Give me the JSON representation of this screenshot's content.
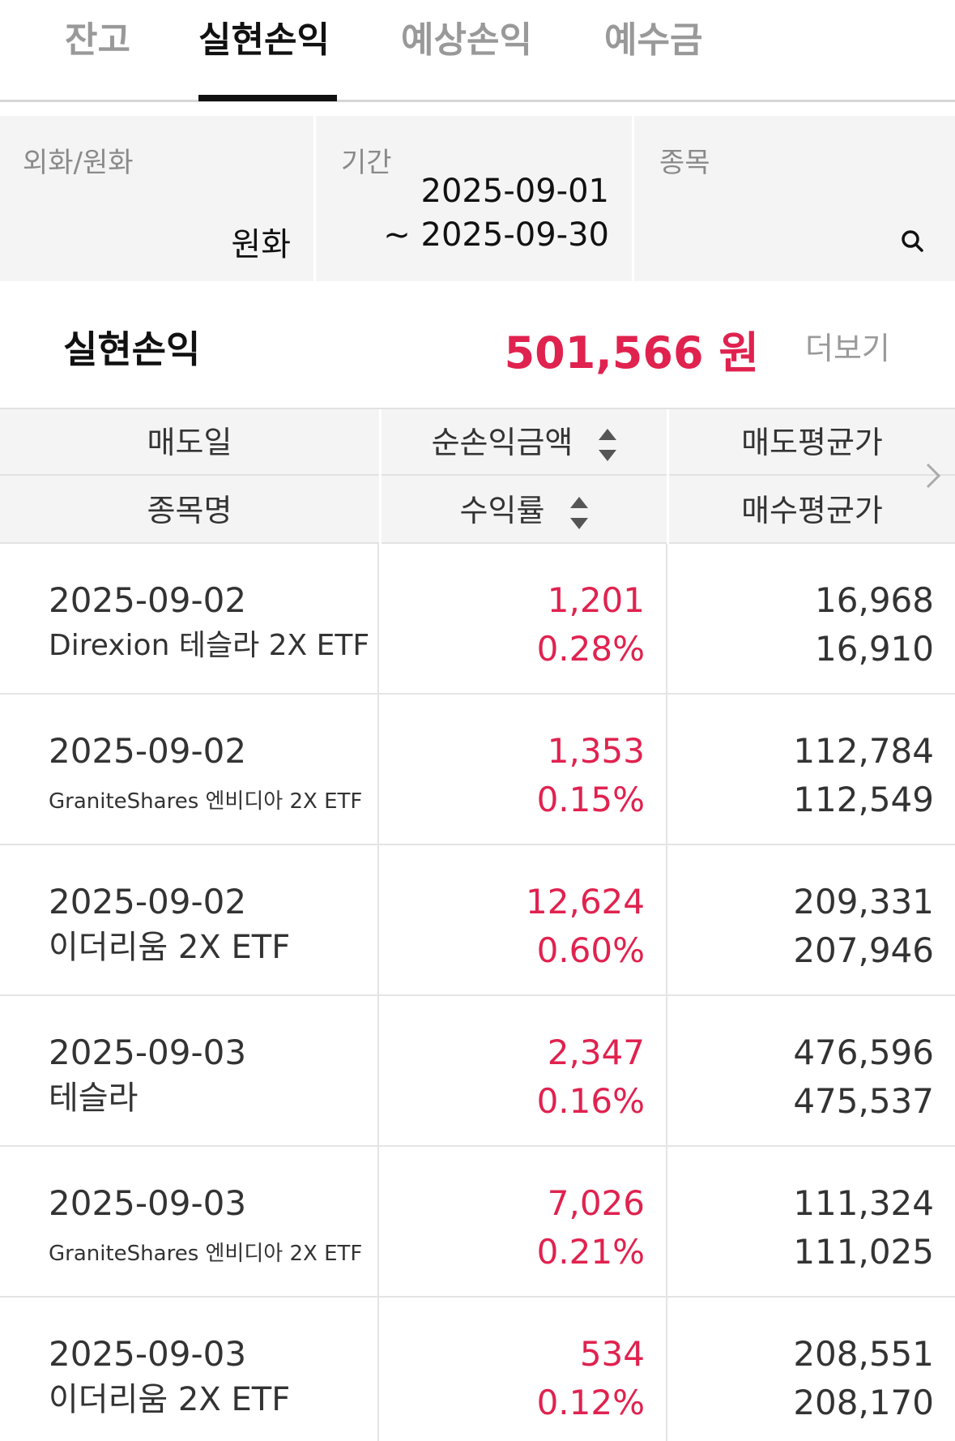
{
  "tabs": [
    {
      "label": "잔고",
      "active": false
    },
    {
      "label": "실현손익",
      "active": true
    },
    {
      "label": "예상손익",
      "active": false
    },
    {
      "label": "예수금",
      "active": false
    }
  ],
  "filters": {
    "currency": {
      "label": "외화/원화",
      "value": "원화"
    },
    "period": {
      "label": "기간",
      "start": "2025-09-01",
      "end": "~ 2025-09-30"
    },
    "stock": {
      "label": "종목",
      "value": "",
      "icon": "search-icon"
    }
  },
  "summary": {
    "title": "실현손익",
    "amount": "501,566 원",
    "more_label": "더보기",
    "amount_color": "#e0224f"
  },
  "table": {
    "headers": {
      "row1": [
        "매도일",
        "순손익금액",
        "매도평균가"
      ],
      "row2": [
        "종목명",
        "수익률",
        "매수평균가"
      ]
    },
    "rows": [
      {
        "date": "2025-09-02",
        "name": "Direxion 테슬라 2X ETF",
        "profit": "1,201",
        "rate": "0.28%",
        "sell_avg": "16,968",
        "buy_avg": "16,910"
      },
      {
        "date": "2025-09-02",
        "name": "GraniteShares 엔비디아 2X ETF",
        "profit": "1,353",
        "rate": "0.15%",
        "sell_avg": "112,784",
        "buy_avg": "112,549"
      },
      {
        "date": "2025-09-02",
        "name": "이더리움 2X ETF",
        "profit": "12,624",
        "rate": "0.60%",
        "sell_avg": "209,331",
        "buy_avg": "207,946"
      },
      {
        "date": "2025-09-03",
        "name": "테슬라",
        "profit": "2,347",
        "rate": "0.16%",
        "sell_avg": "476,596",
        "buy_avg": "475,537"
      },
      {
        "date": "2025-09-03",
        "name": "GraniteShares 엔비디아 2X ETF",
        "profit": "7,026",
        "rate": "0.21%",
        "sell_avg": "111,324",
        "buy_avg": "111,025"
      },
      {
        "date": "2025-09-03",
        "name": "이더리움 2X ETF",
        "profit": "534",
        "rate": "0.12%",
        "sell_avg": "208,551",
        "buy_avg": "208,170"
      }
    ]
  },
  "colors": {
    "profit": "#e0224f",
    "accent_tab": "#111111"
  }
}
